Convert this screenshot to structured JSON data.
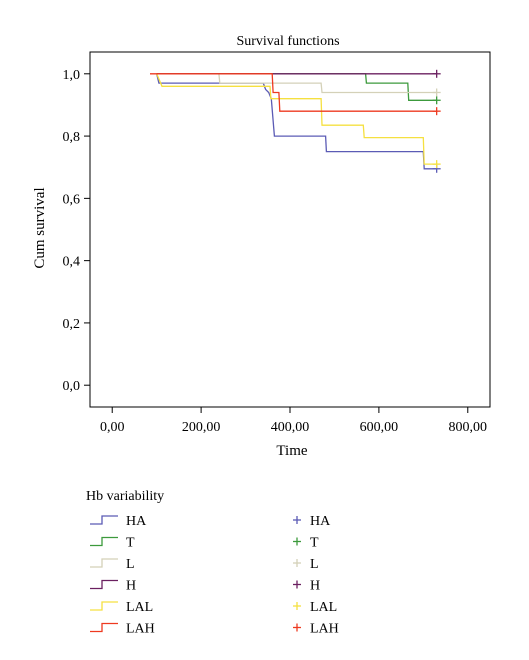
{
  "chart_data": {
    "type": "line",
    "step": true,
    "title": "Survival functions",
    "xlabel": "Time",
    "ylabel": "Cum survival",
    "xlim": [
      -50,
      850
    ],
    "ylim": [
      -0.07,
      1.07
    ],
    "x_ticks": [
      0,
      200,
      400,
      600,
      800
    ],
    "x_tick_labels": [
      "0,00",
      "200,00",
      "400,00",
      "600,00",
      "800,00"
    ],
    "y_ticks": [
      0,
      0.2,
      0.4,
      0.6,
      0.8,
      1.0
    ],
    "y_tick_labels": [
      "0,0",
      "0,2",
      "0,4",
      "0,6",
      "0,8",
      "1,0"
    ],
    "grid": false,
    "legend_title": "Hb variability",
    "legend_position": "bottom-left",
    "series": [
      {
        "name": "HA",
        "color": "#5b5bb5",
        "points": [
          [
            100,
            1.0
          ],
          [
            105,
            0.97
          ],
          [
            340,
            0.97
          ],
          [
            345,
            0.95
          ],
          [
            352,
            0.94
          ],
          [
            358,
            0.92
          ],
          [
            365,
            0.8
          ],
          [
            480,
            0.8
          ],
          [
            482,
            0.75
          ],
          [
            700,
            0.75
          ],
          [
            702,
            0.695
          ],
          [
            730,
            0.695
          ]
        ],
        "censored": [
          [
            730,
            0.695
          ]
        ]
      },
      {
        "name": "T",
        "color": "#3c9a3c",
        "points": [
          [
            100,
            1.0
          ],
          [
            570,
            1.0
          ],
          [
            572,
            0.97
          ],
          [
            665,
            0.97
          ],
          [
            667,
            0.915
          ],
          [
            730,
            0.915
          ]
        ],
        "censored": [
          [
            730,
            0.915
          ]
        ]
      },
      {
        "name": "L",
        "color": "#d4d1b8",
        "points": [
          [
            100,
            1.0
          ],
          [
            240,
            1.0
          ],
          [
            242,
            0.97
          ],
          [
            470,
            0.97
          ],
          [
            472,
            0.94
          ],
          [
            730,
            0.94
          ]
        ],
        "censored": [
          [
            730,
            0.94
          ]
        ]
      },
      {
        "name": "H",
        "color": "#6b2060",
        "points": [
          [
            100,
            1.0
          ],
          [
            730,
            1.0
          ]
        ],
        "censored": [
          [
            730,
            1.0
          ]
        ]
      },
      {
        "name": "LAL",
        "color": "#f5e040",
        "points": [
          [
            100,
            1.0
          ],
          [
            112,
            0.96
          ],
          [
            355,
            0.96
          ],
          [
            357,
            0.92
          ],
          [
            470,
            0.92
          ],
          [
            472,
            0.835
          ],
          [
            565,
            0.835
          ],
          [
            567,
            0.795
          ],
          [
            700,
            0.795
          ],
          [
            702,
            0.71
          ],
          [
            730,
            0.71
          ]
        ],
        "censored": [
          [
            730,
            0.71
          ]
        ]
      },
      {
        "name": "LAH",
        "color": "#ee3a20",
        "points": [
          [
            85,
            1.0
          ],
          [
            360,
            1.0
          ],
          [
            362,
            0.94
          ],
          [
            375,
            0.94
          ],
          [
            377,
            0.88
          ],
          [
            730,
            0.88
          ]
        ],
        "censored": [
          [
            730,
            0.88
          ]
        ]
      }
    ]
  }
}
